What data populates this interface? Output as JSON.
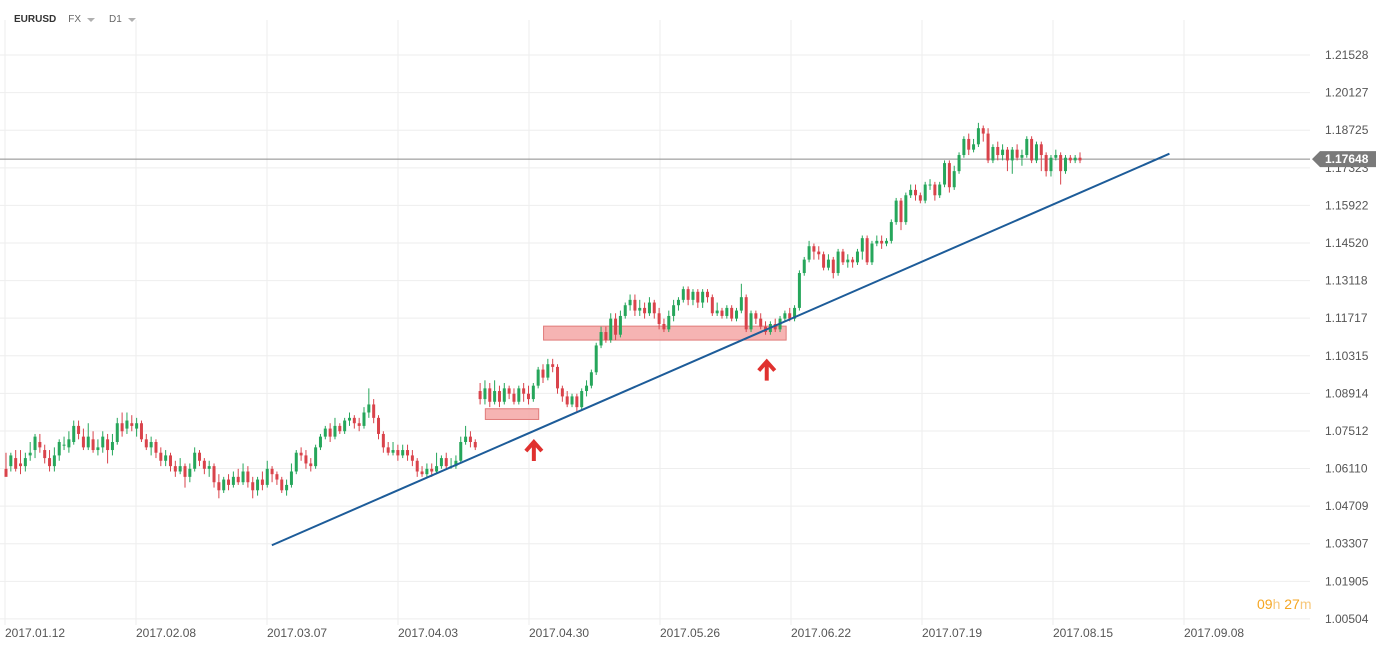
{
  "header": {
    "symbol": "EURUSD",
    "market": "FX",
    "timeframe": "D1"
  },
  "countdown": {
    "hours": "09",
    "h_unit": "h",
    "minutes": "27",
    "m_unit": "m"
  },
  "colors": {
    "up": "#26a65b",
    "down": "#d9434b",
    "trendline": "#1d5c99",
    "zone_fill": "#f4a7a6",
    "zone_stroke": "#e07b7a",
    "arrow": "#e0312f",
    "price_badge": "#7a7a7a",
    "grid": "#eeeeee",
    "countdown": "#f5a623"
  },
  "icons": [
    "dropdown-caret-icon",
    "up-arrow-icon"
  ],
  "chart_data": {
    "type": "candlestick",
    "symbol": "EURUSD",
    "timeframe": "D1",
    "current_price": "1.17648",
    "y_ticks": [
      "1.21528",
      "1.20127",
      "1.18725",
      "1.17323",
      "1.15922",
      "1.14520",
      "1.13118",
      "1.11717",
      "1.10315",
      "1.08914",
      "1.07512",
      "1.06110",
      "1.04709",
      "1.03307",
      "1.01905",
      "1.00504"
    ],
    "x_ticks": [
      "2017.01.12",
      "2017.02.08",
      "2017.03.07",
      "2017.04.03",
      "2017.04.30",
      "2017.05.26",
      "2017.06.22",
      "2017.07.19",
      "2017.08.15",
      "2017.09.08"
    ],
    "ylim": [
      1.005,
      1.2153
    ],
    "grid": true,
    "candles": [
      [
        1.061,
        1.058,
        1.067,
        1.06
      ],
      [
        1.062,
        1.066,
        1.067,
        1.06
      ],
      [
        1.065,
        1.061,
        1.068,
        1.06
      ],
      [
        1.063,
        1.062,
        1.068,
        1.059
      ],
      [
        1.062,
        1.065,
        1.067,
        1.06
      ],
      [
        1.066,
        1.067,
        1.071,
        1.064
      ],
      [
        1.068,
        1.073,
        1.074,
        1.065
      ],
      [
        1.071,
        1.069,
        1.074,
        1.067
      ],
      [
        1.068,
        1.065,
        1.07,
        1.063
      ],
      [
        1.065,
        1.062,
        1.068,
        1.06
      ],
      [
        1.062,
        1.066,
        1.069,
        1.06
      ],
      [
        1.066,
        1.071,
        1.072,
        1.064
      ],
      [
        1.07,
        1.07,
        1.073,
        1.068
      ],
      [
        1.069,
        1.072,
        1.075,
        1.067
      ],
      [
        1.071,
        1.077,
        1.079,
        1.07
      ],
      [
        1.077,
        1.074,
        1.079,
        1.072
      ],
      [
        1.073,
        1.069,
        1.076,
        1.068
      ],
      [
        1.069,
        1.073,
        1.078,
        1.068
      ],
      [
        1.072,
        1.068,
        1.075,
        1.067
      ],
      [
        1.068,
        1.069,
        1.072,
        1.066
      ],
      [
        1.069,
        1.073,
        1.075,
        1.067
      ],
      [
        1.072,
        1.068,
        1.074,
        1.063
      ],
      [
        1.068,
        1.071,
        1.074,
        1.066
      ],
      [
        1.071,
        1.078,
        1.08,
        1.07
      ],
      [
        1.078,
        1.075,
        1.082,
        1.073
      ],
      [
        1.076,
        1.079,
        1.082,
        1.074
      ],
      [
        1.078,
        1.077,
        1.081,
        1.075
      ],
      [
        1.076,
        1.078,
        1.08,
        1.073
      ],
      [
        1.078,
        1.072,
        1.079,
        1.071
      ],
      [
        1.072,
        1.069,
        1.074,
        1.068
      ],
      [
        1.069,
        1.071,
        1.073,
        1.066
      ],
      [
        1.071,
        1.067,
        1.072,
        1.065
      ],
      [
        1.067,
        1.064,
        1.069,
        1.062
      ],
      [
        1.064,
        1.066,
        1.068,
        1.062
      ],
      [
        1.066,
        1.062,
        1.067,
        1.06
      ],
      [
        1.062,
        1.06,
        1.064,
        1.058
      ],
      [
        1.06,
        1.062,
        1.065,
        1.059
      ],
      [
        1.062,
        1.058,
        1.063,
        1.054
      ],
      [
        1.058,
        1.061,
        1.063,
        1.056
      ],
      [
        1.061,
        1.067,
        1.069,
        1.06
      ],
      [
        1.067,
        1.064,
        1.068,
        1.062
      ],
      [
        1.064,
        1.061,
        1.065,
        1.059
      ],
      [
        1.061,
        1.062,
        1.064,
        1.058
      ],
      [
        1.062,
        1.056,
        1.063,
        1.054
      ],
      [
        1.056,
        1.053,
        1.059,
        1.05
      ],
      [
        1.053,
        1.057,
        1.058,
        1.052
      ],
      [
        1.057,
        1.055,
        1.059,
        1.053
      ],
      [
        1.055,
        1.058,
        1.06,
        1.054
      ],
      [
        1.058,
        1.056,
        1.061,
        1.055
      ],
      [
        1.056,
        1.06,
        1.063,
        1.055
      ],
      [
        1.06,
        1.056,
        1.062,
        1.054
      ],
      [
        1.056,
        1.053,
        1.058,
        1.05
      ],
      [
        1.053,
        1.057,
        1.058,
        1.051
      ],
      [
        1.057,
        1.055,
        1.06,
        1.053
      ],
      [
        1.055,
        1.061,
        1.064,
        1.054
      ],
      [
        1.061,
        1.059,
        1.062,
        1.056
      ],
      [
        1.059,
        1.057,
        1.06,
        1.055
      ],
      [
        1.057,
        1.053,
        1.058,
        1.052
      ],
      [
        1.053,
        1.055,
        1.057,
        1.051
      ],
      [
        1.055,
        1.06,
        1.063,
        1.054
      ],
      [
        1.06,
        1.067,
        1.068,
        1.059
      ],
      [
        1.067,
        1.066,
        1.069,
        1.064
      ],
      [
        1.066,
        1.063,
        1.068,
        1.061
      ],
      [
        1.063,
        1.062,
        1.065,
        1.06
      ],
      [
        1.062,
        1.069,
        1.07,
        1.061
      ],
      [
        1.069,
        1.073,
        1.074,
        1.068
      ],
      [
        1.073,
        1.076,
        1.077,
        1.072
      ],
      [
        1.076,
        1.073,
        1.078,
        1.071
      ],
      [
        1.073,
        1.077,
        1.08,
        1.072
      ],
      [
        1.077,
        1.075,
        1.078,
        1.074
      ],
      [
        1.075,
        1.079,
        1.08,
        1.074
      ],
      [
        1.079,
        1.08,
        1.082,
        1.077
      ],
      [
        1.08,
        1.078,
        1.081,
        1.076
      ],
      [
        1.078,
        1.077,
        1.08,
        1.075
      ],
      [
        1.077,
        1.082,
        1.084,
        1.076
      ],
      [
        1.082,
        1.085,
        1.091,
        1.08
      ],
      [
        1.085,
        1.08,
        1.087,
        1.078
      ],
      [
        1.08,
        1.074,
        1.081,
        1.072
      ],
      [
        1.074,
        1.069,
        1.075,
        1.067
      ],
      [
        1.069,
        1.067,
        1.071,
        1.066
      ],
      [
        1.067,
        1.068,
        1.071,
        1.066
      ],
      [
        1.068,
        1.066,
        1.07,
        1.064
      ],
      [
        1.066,
        1.068,
        1.07,
        1.065
      ],
      [
        1.068,
        1.066,
        1.07,
        1.064
      ],
      [
        1.066,
        1.064,
        1.068,
        1.062
      ],
      [
        1.064,
        1.06,
        1.065,
        1.058
      ],
      [
        1.06,
        1.059,
        1.062,
        1.058
      ],
      [
        1.059,
        1.061,
        1.063,
        1.058
      ],
      [
        1.061,
        1.06,
        1.063,
        1.058
      ],
      [
        1.06,
        1.062,
        1.067,
        1.059
      ],
      [
        1.062,
        1.065,
        1.066,
        1.061
      ],
      [
        1.065,
        1.062,
        1.067,
        1.061
      ],
      [
        1.062,
        1.062,
        1.065,
        1.061
      ],
      [
        1.062,
        1.064,
        1.066,
        1.061
      ],
      [
        1.064,
        1.071,
        1.073,
        1.063
      ],
      [
        1.071,
        1.073,
        1.077,
        1.07
      ],
      [
        1.073,
        1.071,
        1.075,
        1.069
      ],
      [
        1.071,
        1.069,
        1.072,
        1.068
      ],
      [
        1.09,
        1.087,
        1.093,
        1.085
      ],
      [
        1.087,
        1.091,
        1.094,
        1.085
      ],
      [
        1.091,
        1.086,
        1.093,
        1.084
      ],
      [
        1.086,
        1.09,
        1.094,
        1.085
      ],
      [
        1.09,
        1.086,
        1.092,
        1.084
      ],
      [
        1.086,
        1.091,
        1.093,
        1.085
      ],
      [
        1.091,
        1.089,
        1.092,
        1.087
      ],
      [
        1.089,
        1.086,
        1.091,
        1.085
      ],
      [
        1.086,
        1.091,
        1.092,
        1.085
      ],
      [
        1.091,
        1.089,
        1.093,
        1.086
      ],
      [
        1.089,
        1.087,
        1.092,
        1.085
      ],
      [
        1.087,
        1.092,
        1.093,
        1.086
      ],
      [
        1.092,
        1.098,
        1.099,
        1.091
      ],
      [
        1.098,
        1.095,
        1.1,
        1.093
      ],
      [
        1.095,
        1.1,
        1.102,
        1.094
      ],
      [
        1.1,
        1.099,
        1.102,
        1.097
      ],
      [
        1.099,
        1.091,
        1.1,
        1.089
      ],
      [
        1.091,
        1.088,
        1.092,
        1.086
      ],
      [
        1.088,
        1.085,
        1.09,
        1.084
      ],
      [
        1.085,
        1.088,
        1.089,
        1.084
      ],
      [
        1.088,
        1.084,
        1.089,
        1.082
      ],
      [
        1.084,
        1.09,
        1.091,
        1.083
      ],
      [
        1.09,
        1.092,
        1.094,
        1.088
      ],
      [
        1.092,
        1.097,
        1.098,
        1.091
      ],
      [
        1.097,
        1.107,
        1.108,
        1.096
      ],
      [
        1.107,
        1.112,
        1.114,
        1.106
      ],
      [
        1.112,
        1.109,
        1.114,
        1.108
      ],
      [
        1.109,
        1.117,
        1.119,
        1.108
      ],
      [
        1.117,
        1.111,
        1.119,
        1.109
      ],
      [
        1.111,
        1.118,
        1.12,
        1.11
      ],
      [
        1.118,
        1.122,
        1.123,
        1.117
      ],
      [
        1.122,
        1.124,
        1.126,
        1.12
      ],
      [
        1.124,
        1.12,
        1.126,
        1.118
      ],
      [
        1.12,
        1.121,
        1.124,
        1.118
      ],
      [
        1.121,
        1.119,
        1.123,
        1.117
      ],
      [
        1.119,
        1.123,
        1.125,
        1.118
      ],
      [
        1.123,
        1.119,
        1.124,
        1.117
      ],
      [
        1.119,
        1.115,
        1.121,
        1.113
      ],
      [
        1.115,
        1.113,
        1.117,
        1.112
      ],
      [
        1.113,
        1.118,
        1.12,
        1.112
      ],
      [
        1.118,
        1.122,
        1.124,
        1.116
      ],
      [
        1.122,
        1.124,
        1.125,
        1.12
      ],
      [
        1.124,
        1.128,
        1.129,
        1.123
      ],
      [
        1.128,
        1.124,
        1.129,
        1.122
      ],
      [
        1.124,
        1.127,
        1.128,
        1.122
      ],
      [
        1.127,
        1.123,
        1.128,
        1.121
      ],
      [
        1.123,
        1.127,
        1.128,
        1.121
      ],
      [
        1.127,
        1.125,
        1.128,
        1.123
      ],
      [
        1.125,
        1.119,
        1.126,
        1.118
      ],
      [
        1.119,
        1.12,
        1.123,
        1.118
      ],
      [
        1.12,
        1.118,
        1.121,
        1.117
      ],
      [
        1.118,
        1.121,
        1.122,
        1.117
      ],
      [
        1.121,
        1.117,
        1.122,
        1.116
      ],
      [
        1.117,
        1.12,
        1.121,
        1.116
      ],
      [
        1.12,
        1.125,
        1.13,
        1.119
      ],
      [
        1.125,
        1.113,
        1.126,
        1.112
      ],
      [
        1.113,
        1.119,
        1.12,
        1.112
      ],
      [
        1.119,
        1.117,
        1.12,
        1.115
      ],
      [
        1.117,
        1.114,
        1.119,
        1.113
      ],
      [
        1.114,
        1.112,
        1.116,
        1.111
      ],
      [
        1.112,
        1.115,
        1.116,
        1.111
      ],
      [
        1.115,
        1.113,
        1.117,
        1.112
      ],
      [
        1.113,
        1.117,
        1.118,
        1.112
      ],
      [
        1.117,
        1.119,
        1.12,
        1.116
      ],
      [
        1.119,
        1.117,
        1.121,
        1.116
      ],
      [
        1.117,
        1.121,
        1.122,
        1.116
      ],
      [
        1.121,
        1.134,
        1.135,
        1.12
      ],
      [
        1.134,
        1.139,
        1.14,
        1.133
      ],
      [
        1.139,
        1.144,
        1.146,
        1.138
      ],
      [
        1.144,
        1.142,
        1.145,
        1.139
      ],
      [
        1.142,
        1.141,
        1.144,
        1.139
      ],
      [
        1.141,
        1.136,
        1.142,
        1.135
      ],
      [
        1.136,
        1.139,
        1.141,
        1.135
      ],
      [
        1.139,
        1.134,
        1.14,
        1.132
      ],
      [
        1.134,
        1.142,
        1.143,
        1.133
      ],
      [
        1.142,
        1.138,
        1.143,
        1.137
      ],
      [
        1.138,
        1.139,
        1.141,
        1.136
      ],
      [
        1.139,
        1.138,
        1.14,
        1.136
      ],
      [
        1.138,
        1.142,
        1.143,
        1.137
      ],
      [
        1.142,
        1.147,
        1.148,
        1.139
      ],
      [
        1.147,
        1.138,
        1.148,
        1.137
      ],
      [
        1.138,
        1.145,
        1.146,
        1.137
      ],
      [
        1.145,
        1.146,
        1.148,
        1.144
      ],
      [
        1.146,
        1.145,
        1.148,
        1.143
      ],
      [
        1.145,
        1.146,
        1.147,
        1.144
      ],
      [
        1.146,
        1.153,
        1.154,
        1.145
      ],
      [
        1.153,
        1.161,
        1.162,
        1.152
      ],
      [
        1.161,
        1.153,
        1.162,
        1.15
      ],
      [
        1.153,
        1.163,
        1.164,
        1.152
      ],
      [
        1.163,
        1.165,
        1.167,
        1.162
      ],
      [
        1.165,
        1.163,
        1.167,
        1.161
      ],
      [
        1.163,
        1.161,
        1.164,
        1.16
      ],
      [
        1.161,
        1.167,
        1.168,
        1.16
      ],
      [
        1.167,
        1.167,
        1.169,
        1.165
      ],
      [
        1.167,
        1.163,
        1.168,
        1.161
      ],
      [
        1.163,
        1.167,
        1.168,
        1.162
      ],
      [
        1.167,
        1.175,
        1.176,
        1.166
      ],
      [
        1.175,
        1.166,
        1.176,
        1.164
      ],
      [
        1.166,
        1.172,
        1.174,
        1.165
      ],
      [
        1.172,
        1.178,
        1.179,
        1.171
      ],
      [
        1.178,
        1.184,
        1.185,
        1.177
      ],
      [
        1.184,
        1.18,
        1.186,
        1.178
      ],
      [
        1.18,
        1.182,
        1.184,
        1.179
      ],
      [
        1.182,
        1.188,
        1.19,
        1.181
      ],
      [
        1.188,
        1.186,
        1.189,
        1.183
      ],
      [
        1.186,
        1.176,
        1.188,
        1.175
      ],
      [
        1.176,
        1.181,
        1.182,
        1.175
      ],
      [
        1.181,
        1.178,
        1.183,
        1.176
      ],
      [
        1.178,
        1.18,
        1.182,
        1.176
      ],
      [
        1.18,
        1.176,
        1.181,
        1.172
      ],
      [
        1.176,
        1.18,
        1.181,
        1.171
      ],
      [
        1.18,
        1.177,
        1.182,
        1.176
      ],
      [
        1.177,
        1.178,
        1.18,
        1.174
      ],
      [
        1.178,
        1.184,
        1.185,
        1.177
      ],
      [
        1.184,
        1.176,
        1.185,
        1.175
      ],
      [
        1.176,
        1.182,
        1.183,
        1.175
      ],
      [
        1.182,
        1.178,
        1.183,
        1.172
      ],
      [
        1.178,
        1.172,
        1.179,
        1.17
      ],
      [
        1.172,
        1.177,
        1.178,
        1.17
      ],
      [
        1.177,
        1.178,
        1.18,
        1.176
      ],
      [
        1.178,
        1.172,
        1.179,
        1.167
      ],
      [
        1.172,
        1.177,
        1.178,
        1.171
      ],
      [
        1.177,
        1.176,
        1.178,
        1.175
      ],
      [
        1.176,
        1.177,
        1.178,
        1.175
      ],
      [
        1.177,
        1.176,
        1.179,
        1.175
      ]
    ],
    "trendline": {
      "start": [
        "2017.03.08",
        1.0325
      ],
      "end": [
        "2017.09.09",
        1.1785
      ]
    },
    "support_zones": [
      {
        "from": "2017.04.21",
        "to": "2017.05.02",
        "low": 1.0794,
        "high": 1.0834
      },
      {
        "from": "2017.05.03",
        "to": "2017.06.22",
        "low": 1.109,
        "high": 1.1142
      }
    ],
    "markers": [
      {
        "type": "up-arrow",
        "date": "2017.05.01",
        "price": 1.068
      },
      {
        "type": "up-arrow",
        "date": "2017.06.18",
        "price": 1.098
      }
    ]
  }
}
